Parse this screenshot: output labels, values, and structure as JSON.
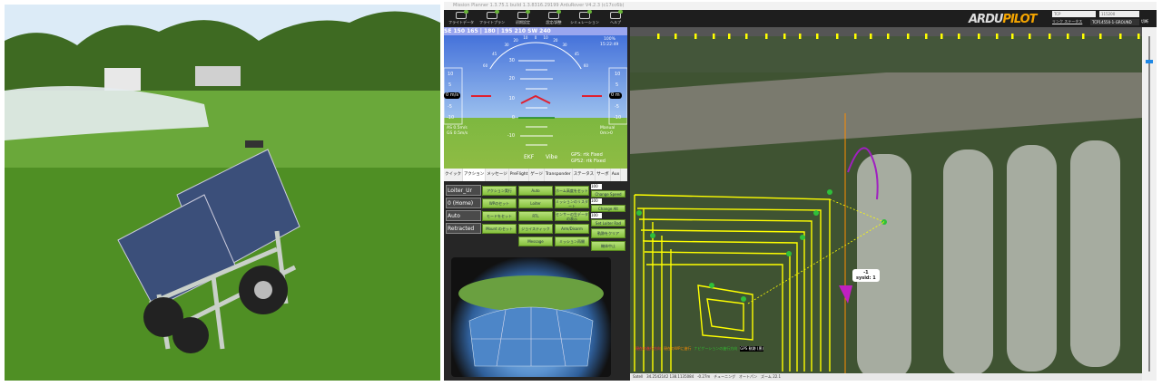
{
  "window_title": "Mission Planner 1.3.75.1 build 1.3.8316.29199 ArduRover V4.2.3 (c17cc6b)",
  "toolbar": [
    {
      "label": "フライトデータ",
      "icon": "flight-data-icon"
    },
    {
      "label": "フライトプラン",
      "icon": "flight-plan-icon"
    },
    {
      "label": "初期設定",
      "icon": "setup-icon"
    },
    {
      "label": "設定/調整",
      "icon": "config-icon"
    },
    {
      "label": "シミュレーション",
      "icon": "simulation-icon"
    },
    {
      "label": "ヘルプ",
      "icon": "help-icon"
    }
  ],
  "brand": {
    "ardu": "ARDU",
    "pilot": "PILOT"
  },
  "connection": {
    "type": "TCP",
    "baud": "115200",
    "link_stats": "リンク ステータス",
    "port": "TCP14550-1-GROUND",
    "connect_label": "切断"
  },
  "hud": {
    "heading": "SE  150  165  | 180 |  195  210  SW  240",
    "speed": "0 m/s",
    "alt": "0 m",
    "battery": "100%",
    "time": "15:22:49",
    "as": "AS 0.5m/s",
    "gs": "GS 0.5m/s",
    "mode": "Manual",
    "dist": "0m>0",
    "ekf": "EKF",
    "vibe": "Vibe",
    "gps": "GPS: rtk Fixed",
    "gps2": "GPS2: rtk Fixed",
    "pitch_labels": [
      "30",
      "20",
      "10",
      "0",
      "-10"
    ],
    "roll_labels": [
      "60",
      "45",
      "30",
      "20",
      "10",
      "0",
      "10",
      "20",
      "30",
      "45",
      "60"
    ],
    "left_scale": [
      "10",
      "5",
      "-5",
      "-10"
    ],
    "right_scale": [
      "10",
      "5",
      "-5",
      "-10"
    ]
  },
  "tabs": [
    "クイック",
    "アクション",
    "メッセージ",
    "PreFlight",
    "ゲージ",
    "Transponder",
    "ステータス",
    "サーボ",
    "Aux"
  ],
  "active_tab": 1,
  "actions": {
    "dropdowns": [
      "Loiter_Ur",
      "0 (Home)",
      "Auto",
      "Retracted"
    ],
    "col1": [
      "アクション実行",
      "WPのセット",
      "モードをセット",
      "Mount のセット"
    ],
    "col2": [
      "Auto",
      "Loiter",
      "RTL",
      "ジョイスティック",
      "Message"
    ],
    "col3": [
      "ホーム高度をセット",
      "ミッションのリスタート",
      "センサーの生データの表示",
      "Arm/Disarm",
      "ミッション再開"
    ],
    "col4": [
      "Change Speed",
      "Change Alt",
      "Set Loiter Rad",
      "軌跡をクリア",
      "機体中止"
    ],
    "spin_value": "100"
  },
  "map": {
    "vehicle_label": "-1",
    "vehicle_sysid": "sysid: 1",
    "legend": [
      "現在の進行方向",
      "現在のWPに進行",
      "ナビゲーションの進行方向",
      "GPS 軌跡 (黒)"
    ],
    "status": {
      "coords": "34.2542142 138.1135084",
      "alt": "-0.27m",
      "tuning": "チューニング",
      "autopan": "オートパン",
      "zoom_label": "ズーム",
      "zoom": "22.1",
      "mode_select": "Satell"
    },
    "path_color": "#ffff00",
    "track_color": "#a020c0"
  }
}
